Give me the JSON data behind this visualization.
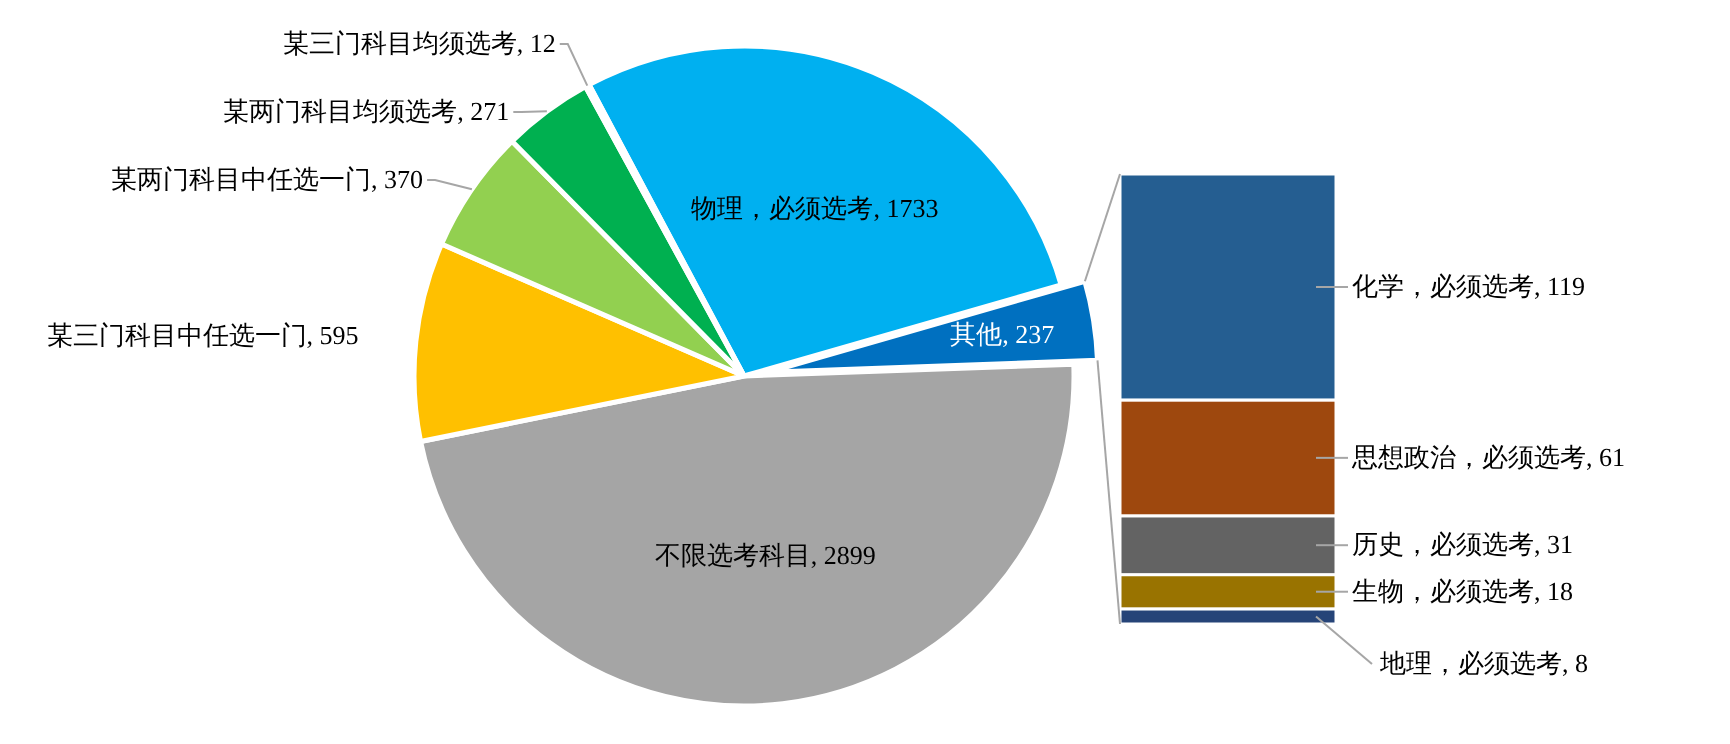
{
  "chart_data": [
    {
      "type": "pie",
      "categories": [
        null,
        null,
        null,
        null,
        null,
        null,
        null
      ],
      "values": [
        1733,
        237,
        2899,
        595,
        370,
        271,
        12
      ],
      "colors": [
        "#00b0f0",
        "#0070c0",
        "#a5a5a5",
        "#ffc000",
        "#92d050",
        "#00b050",
        "#00a84f"
      ],
      "value_labels": [
        "物理，必须选考, 1733",
        "其他, 237",
        "不限选考科目, 2899",
        "某三门科目中任选一门, 595",
        "某两门科目中任选一门, 370",
        "某两门科目均须选考, 271",
        "某三门科目均须选考, 12"
      ]
    },
    {
      "type": "bar",
      "stacked": true,
      "categories": [
        null
      ],
      "series": [
        {
          "color": "#264478",
          "values": [
            8
          ],
          "value_labels": [
            "地理，必须选考, 8"
          ]
        },
        {
          "color": "#997300",
          "values": [
            18
          ],
          "value_labels": [
            "生物，必须选考, 18"
          ]
        },
        {
          "color": "#636363",
          "values": [
            31
          ],
          "value_labels": [
            "历史，必须选考, 31"
          ]
        },
        {
          "color": "#9e480e",
          "values": [
            61
          ],
          "value_labels": [
            "思想政治，必须选考, 61"
          ]
        },
        {
          "color": "#255e91",
          "values": [
            119
          ],
          "value_labels": [
            "化学，必须选考, 119"
          ]
        }
      ]
    }
  ]
}
